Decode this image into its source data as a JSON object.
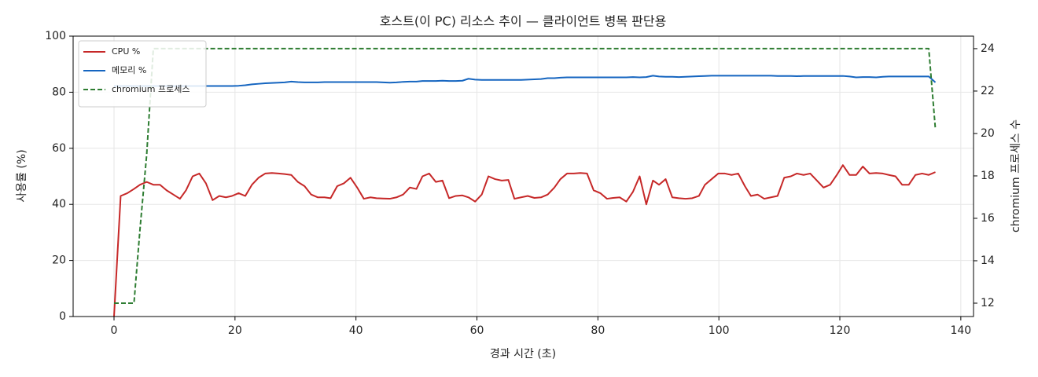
{
  "chart_data": {
    "type": "line",
    "title": "호스트(이 PC) 리소스 추이 — 클라이언트 병목 판단용",
    "xlabel": "경과 시간 (초)",
    "ylabel": "사용률 (%)",
    "y2label": "chromium 프로세스 수",
    "x": [
      0,
      1.1,
      2.2,
      3.3,
      4.3,
      5.4,
      6.5,
      7.6,
      8.7,
      9.8,
      10.9,
      11.9,
      13.0,
      14.1,
      15.2,
      16.3,
      17.4,
      18.5,
      19.5,
      20.6,
      21.7,
      22.8,
      23.9,
      25.0,
      26.1,
      27.2,
      28.2,
      29.3,
      30.4,
      31.5,
      32.6,
      33.7,
      34.8,
      35.8,
      36.9,
      38.0,
      39.1,
      40.2,
      41.3,
      42.4,
      43.4,
      44.5,
      45.6,
      46.7,
      47.8,
      48.9,
      50.0,
      51.0,
      52.1,
      53.2,
      54.3,
      55.4,
      56.5,
      57.6,
      58.6,
      59.7,
      60.8,
      61.9,
      63.0,
      64.1,
      65.2,
      66.2,
      67.3,
      68.4,
      69.5,
      70.6,
      71.7,
      72.8,
      73.8,
      74.9,
      76.0,
      77.1,
      78.2,
      79.3,
      80.4,
      81.5,
      82.5,
      83.6,
      84.7,
      85.8,
      86.9,
      88.0,
      89.1,
      90.1,
      91.2,
      92.3,
      93.4,
      94.5,
      95.6,
      96.7,
      97.7,
      98.8,
      99.9,
      101.0,
      102.1,
      103.2,
      104.3,
      105.3,
      106.4,
      107.5,
      108.6,
      109.7,
      110.8,
      111.9,
      112.9,
      114.0,
      115.1,
      116.2,
      117.3,
      118.4,
      119.5,
      120.5,
      121.6,
      122.7,
      123.8,
      124.9,
      126.0,
      127.1,
      128.1,
      129.2,
      130.3,
      131.4,
      132.5,
      133.6,
      134.7,
      135.8
    ],
    "series": [
      {
        "name": "CPU %",
        "color": "#c62828",
        "linestyle": "solid",
        "values": [
          0,
          43,
          44,
          45.5,
          47,
          48,
          47,
          47,
          45,
          43.5,
          42,
          45,
          50,
          51,
          47.5,
          41.5,
          43,
          42.5,
          43,
          44,
          43,
          47,
          49.5,
          51,
          51.2,
          51,
          50.8,
          50.5,
          48,
          46.5,
          43.5,
          42.5,
          42.5,
          42.2,
          46.5,
          47.5,
          49.5,
          46,
          42,
          42.5,
          42.2,
          42.1,
          42,
          42.5,
          43.5,
          46,
          45.5,
          50,
          51,
          48,
          48.5,
          42.2,
          43,
          43.2,
          42.5,
          41,
          43.5,
          50,
          49,
          48.5,
          48.7,
          42,
          42.5,
          43,
          42.3,
          42.5,
          43.5,
          46,
          49,
          51,
          51,
          51.2,
          51,
          45,
          44,
          42,
          42.3,
          42.5,
          41,
          44.5,
          50,
          40,
          48.5,
          47,
          49,
          42.5,
          42.2,
          42,
          42.2,
          43,
          47,
          49,
          51,
          51,
          50.5,
          51,
          46.5,
          43,
          43.5,
          42,
          42.5,
          43,
          49.5,
          50,
          51,
          50.5,
          51,
          48.5,
          46,
          47,
          50.5,
          54,
          50.5,
          50.5,
          53.5,
          51,
          51.2,
          51,
          50.5,
          50,
          47,
          47,
          50.5,
          51,
          50.5,
          51.5
        ]
      },
      {
        "name": "메모리 %",
        "color": "#1565c0",
        "linestyle": "solid",
        "values": [
          82.2,
          82.2,
          82.2,
          82.2,
          82.2,
          82.2,
          82.2,
          82.2,
          82.2,
          82.2,
          82.2,
          82.2,
          82.2,
          82.2,
          82.2,
          82.2,
          82.2,
          82.2,
          82.2,
          82.3,
          82.5,
          82.8,
          83,
          83.2,
          83.3,
          83.4,
          83.5,
          83.8,
          83.6,
          83.5,
          83.5,
          83.5,
          83.6,
          83.6,
          83.6,
          83.6,
          83.6,
          83.6,
          83.6,
          83.6,
          83.6,
          83.5,
          83.4,
          83.5,
          83.7,
          83.8,
          83.8,
          84,
          84,
          84,
          84.1,
          84,
          84,
          84.1,
          84.8,
          84.5,
          84.4,
          84.4,
          84.4,
          84.4,
          84.4,
          84.4,
          84.4,
          84.5,
          84.6,
          84.7,
          85,
          85,
          85.2,
          85.3,
          85.3,
          85.3,
          85.3,
          85.3,
          85.3,
          85.3,
          85.3,
          85.3,
          85.3,
          85.4,
          85.3,
          85.4,
          85.9,
          85.6,
          85.5,
          85.5,
          85.4,
          85.5,
          85.6,
          85.7,
          85.8,
          85.9,
          85.9,
          85.9,
          85.9,
          85.9,
          85.9,
          85.9,
          85.9,
          85.9,
          85.9,
          85.8,
          85.8,
          85.8,
          85.7,
          85.8,
          85.8,
          85.8,
          85.8,
          85.8,
          85.8,
          85.8,
          85.6,
          85.3,
          85.4,
          85.4,
          85.3,
          85.5,
          85.6,
          85.6,
          85.6,
          85.6,
          85.6,
          85.6,
          85.6,
          83.5
        ]
      },
      {
        "name": "chromium 프로세스",
        "color": "#2e7d32",
        "linestyle": "dashed",
        "axis": "y2",
        "values": [
          12,
          12,
          12,
          12,
          15.5,
          19,
          24,
          24,
          24,
          24,
          24,
          24,
          24,
          24,
          24,
          24,
          24,
          24,
          24,
          24,
          24,
          24,
          24,
          24,
          24,
          24,
          24,
          24,
          24,
          24,
          24,
          24,
          24,
          24,
          24,
          24,
          24,
          24,
          24,
          24,
          24,
          24,
          24,
          24,
          24,
          24,
          24,
          24,
          24,
          24,
          24,
          24,
          24,
          24,
          24,
          24,
          24,
          24,
          24,
          24,
          24,
          24,
          24,
          24,
          24,
          24,
          24,
          24,
          24,
          24,
          24,
          24,
          24,
          24,
          24,
          24,
          24,
          24,
          24,
          24,
          24,
          24,
          24,
          24,
          24,
          24,
          24,
          24,
          24,
          24,
          24,
          24,
          24,
          24,
          24,
          24,
          24,
          24,
          24,
          24,
          24,
          24,
          24,
          24,
          24,
          24,
          24,
          24,
          24,
          24,
          24,
          24,
          24,
          24,
          24,
          24,
          24,
          24,
          24,
          24,
          24,
          24,
          24,
          24,
          24,
          20.2
        ]
      }
    ],
    "xlim": [
      -6.76,
      142.1
    ],
    "xticks": [
      0,
      20,
      40,
      60,
      80,
      100,
      120,
      140
    ],
    "ylim": [
      0,
      100
    ],
    "yticks": [
      0,
      20,
      40,
      60,
      80,
      100
    ],
    "y2lim": [
      11.37,
      24.59
    ],
    "y2ticks": [
      12,
      14,
      16,
      18,
      20,
      22,
      24
    ],
    "grid": true,
    "legend": "upper left"
  }
}
